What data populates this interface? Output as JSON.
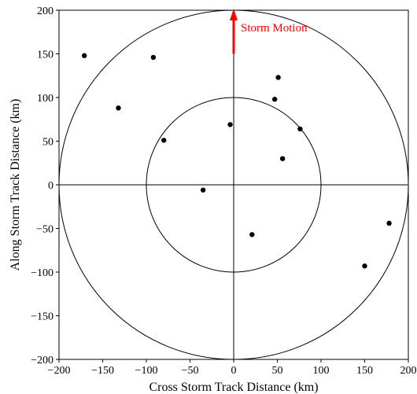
{
  "chart_data": {
    "type": "scatter",
    "title": "",
    "xlabel": "Cross Storm Track Distance (km)",
    "ylabel": "Along Storm Track Distance (km)",
    "xlim": [
      -200,
      200
    ],
    "ylim": [
      -200,
      200
    ],
    "xticks": [
      -200,
      -150,
      -100,
      -50,
      0,
      50,
      100,
      150,
      200
    ],
    "yticks": [
      -200,
      -150,
      -100,
      -50,
      0,
      50,
      100,
      150,
      200
    ],
    "xtick_labels": [
      "−200",
      "−150",
      "−100",
      "−50",
      "0",
      "50",
      "100",
      "150",
      "200"
    ],
    "ytick_labels": [
      "−200",
      "−150",
      "−100",
      "−50",
      "0",
      "50",
      "100",
      "150",
      "200"
    ],
    "grid": false,
    "circles": [
      {
        "radius": 100
      },
      {
        "radius": 200
      }
    ],
    "crosshair_lines": true,
    "annotation": {
      "text": "Storm Motion",
      "color": "#ff0000",
      "arrow_from": [
        0,
        150
      ],
      "arrow_to": [
        0,
        200
      ]
    },
    "points": [
      {
        "x": -171,
        "y": 148
      },
      {
        "x": -92,
        "y": 146
      },
      {
        "x": -132,
        "y": 88
      },
      {
        "x": -80,
        "y": 51
      },
      {
        "x": -35,
        "y": -6
      },
      {
        "x": -4,
        "y": 69
      },
      {
        "x": 51,
        "y": 123
      },
      {
        "x": 47,
        "y": 98
      },
      {
        "x": 76,
        "y": 64
      },
      {
        "x": 56,
        "y": 30
      },
      {
        "x": 21,
        "y": -57
      },
      {
        "x": 150,
        "y": -93
      },
      {
        "x": 178,
        "y": -44
      }
    ],
    "point_color": "#000000"
  }
}
